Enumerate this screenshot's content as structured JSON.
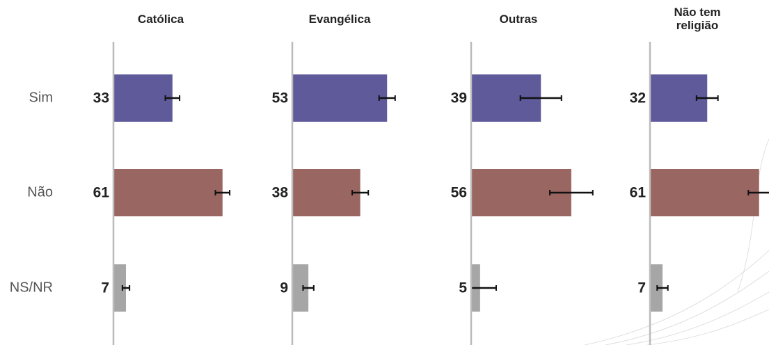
{
  "chart_data": [
    {
      "type": "bar",
      "title": "Católica",
      "categories": [
        "Sim",
        "Não",
        "NS/NR"
      ],
      "values": [
        33,
        61,
        7
      ],
      "errors": [
        4,
        4,
        2
      ],
      "colors": [
        "#5f5a9a",
        "#9a6662",
        "#a6a6a6"
      ],
      "xlim": [
        0,
        100
      ]
    },
    {
      "type": "bar",
      "title": "Evangélica",
      "categories": [
        "Sim",
        "Não",
        "NS/NR"
      ],
      "values": [
        53,
        38,
        9
      ],
      "errors": [
        4.5,
        4.5,
        3
      ],
      "colors": [
        "#5f5a9a",
        "#9a6662",
        "#a6a6a6"
      ],
      "xlim": [
        0,
        100
      ]
    },
    {
      "type": "bar",
      "title": "Outras",
      "categories": [
        "Sim",
        "Não",
        "NS/NR"
      ],
      "values": [
        39,
        56,
        5
      ],
      "errors": [
        11.5,
        12,
        9
      ],
      "colors": [
        "#5f5a9a",
        "#9a6662",
        "#a6a6a6"
      ],
      "xlim": [
        0,
        100
      ]
    },
    {
      "type": "bar",
      "title": "Não tem religião",
      "categories": [
        "Sim",
        "Não",
        "NS/NR"
      ],
      "values": [
        32,
        61,
        7
      ],
      "errors": [
        6,
        6,
        3
      ],
      "colors": [
        "#5f5a9a",
        "#9a6662",
        "#a6a6a6"
      ],
      "xlim": [
        0,
        100
      ]
    }
  ]
}
